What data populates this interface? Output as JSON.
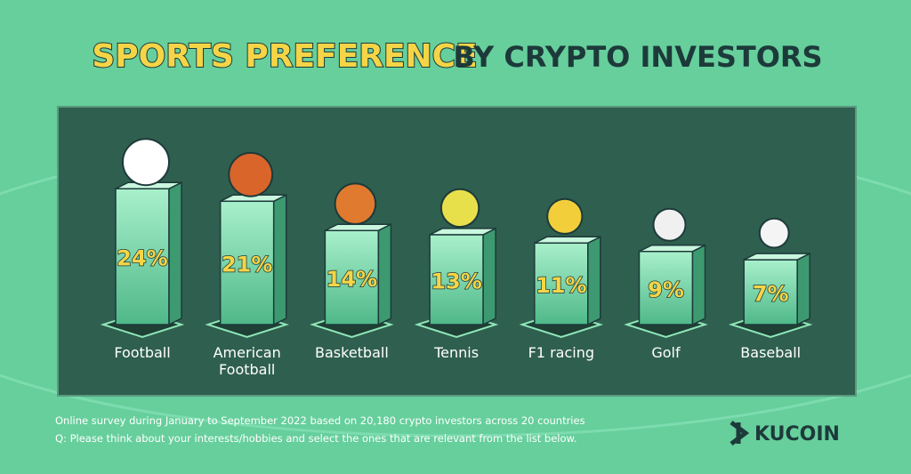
{
  "chart_data": {
    "type": "bar",
    "title": "SPORTS PREFERENCE",
    "subtitle": "BY CRYPTO INVESTORS",
    "categories": [
      "Football",
      "American Football",
      "Basketball",
      "Tennis",
      "F1 racing",
      "Golf",
      "Baseball"
    ],
    "values": [
      24,
      21,
      14,
      13,
      11,
      9,
      7
    ],
    "value_labels": [
      "24%",
      "21%",
      "14%",
      "13%",
      "11%",
      "9%",
      "7%"
    ],
    "color": "#8fe6b8",
    "notes": [
      "Online survey during January to September 2022 based on 20,180 crypto investors across 20 countries",
      "Q: Please think about your interests/hobbies and select the ones that are relevant from the list below."
    ]
  },
  "brand": "KUCOIN"
}
